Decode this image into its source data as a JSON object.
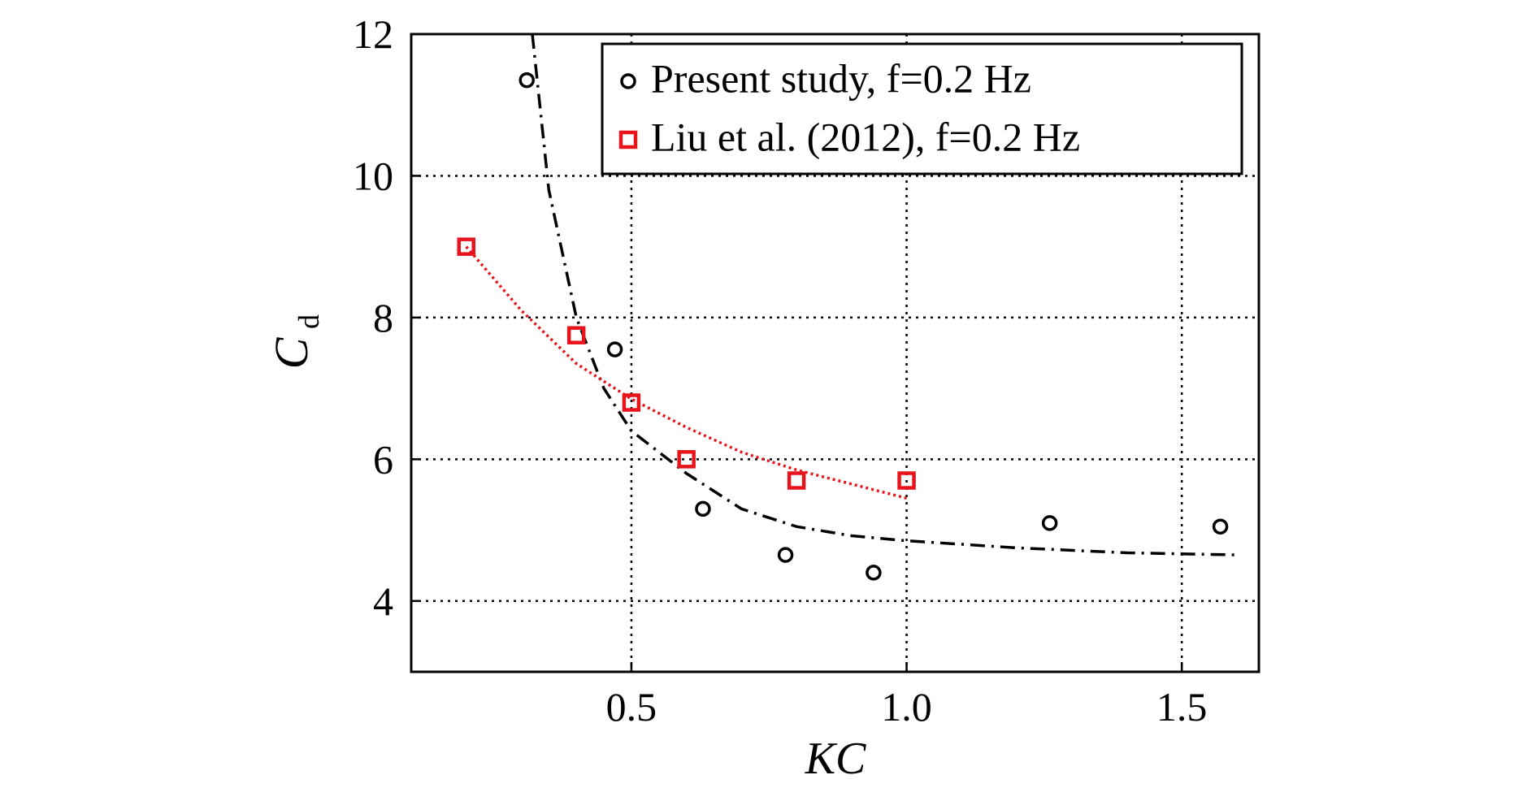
{
  "chart_data": {
    "type": "scatter",
    "xlabel": "KC",
    "ylabel": "C",
    "ylabel_sub": "d",
    "xlim": [
      0.1,
      1.64
    ],
    "ylim": [
      3,
      12
    ],
    "xticks": [
      0.5,
      {
        "value": 1.0,
        "label": "1.0"
      },
      1.5
    ],
    "yticks": [
      4,
      6,
      8,
      10,
      12
    ],
    "grid": true,
    "legend": "upper right",
    "series": [
      {
        "name": "Present study, f=0.2 Hz",
        "color": "#000000",
        "marker": "circle",
        "x": [
          0.31,
          0.47,
          0.63,
          0.78,
          0.94,
          1.26,
          1.57
        ],
        "values": [
          11.35,
          7.55,
          5.3,
          4.65,
          4.4,
          5.1,
          5.05
        ]
      },
      {
        "name": "Liu et al. (2012), f=0.2 Hz",
        "color": "#e8141b",
        "marker": "square",
        "x": [
          0.2,
          0.4,
          0.5,
          0.6,
          0.8,
          1.0
        ],
        "values": [
          9.0,
          7.75,
          6.8,
          6.0,
          5.7,
          5.7
        ]
      }
    ],
    "fits": [
      {
        "color": "#000000",
        "dash": "dashdot",
        "x": [
          0.32,
          0.35,
          0.4,
          0.45,
          0.5,
          0.6,
          0.7,
          0.8,
          0.9,
          1.0,
          1.2,
          1.4,
          1.6
        ],
        "values": [
          12,
          9.8,
          8.0,
          7.0,
          6.4,
          5.8,
          5.3,
          5.05,
          4.92,
          4.85,
          4.75,
          4.68,
          4.65
        ]
      },
      {
        "color": "#e8141b",
        "dash": "dotted",
        "x": [
          0.2,
          0.3,
          0.4,
          0.5,
          0.6,
          0.7,
          0.8,
          0.9,
          1.0
        ],
        "values": [
          9.0,
          8.1,
          7.35,
          6.85,
          6.45,
          6.1,
          5.85,
          5.65,
          5.45
        ]
      }
    ]
  }
}
